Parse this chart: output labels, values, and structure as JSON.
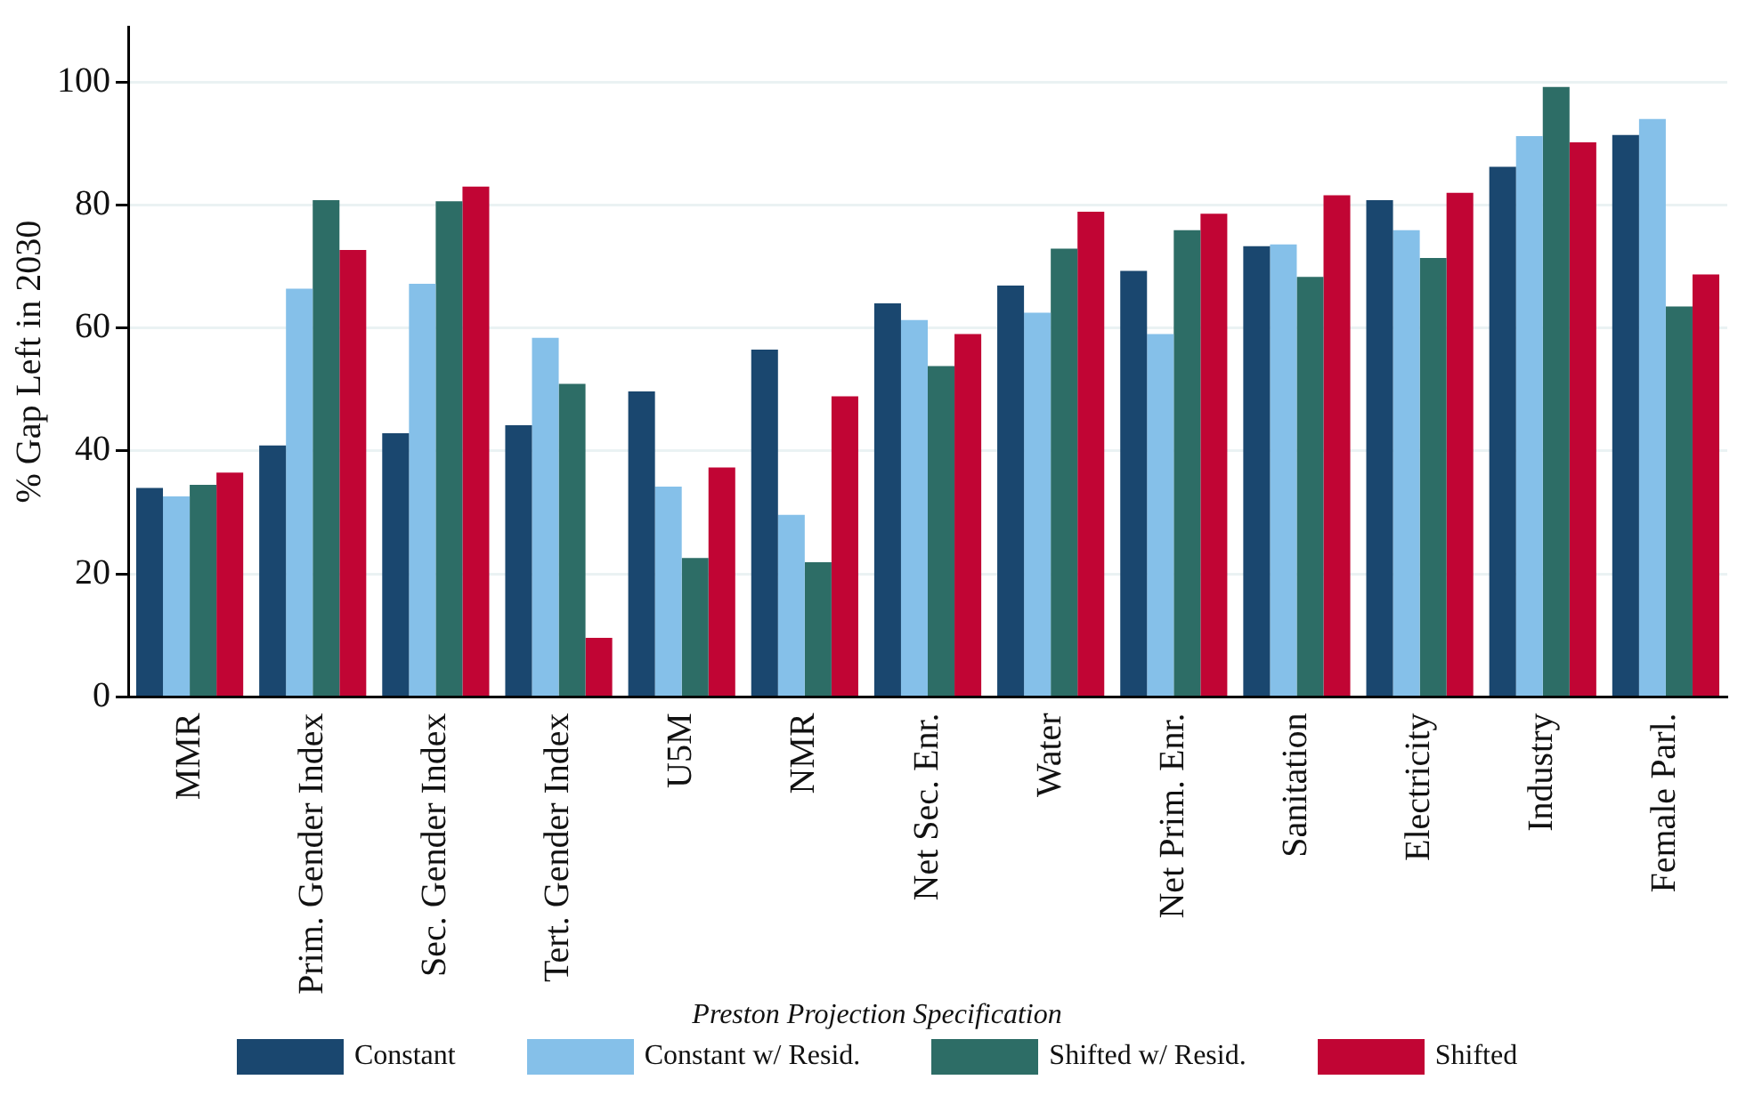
{
  "chart_data": {
    "type": "bar",
    "ylabel": "% Gap Left in 2030",
    "legend_title": "Preston Projection Specification",
    "categories": [
      "MMR",
      "Prim. Gender Index",
      "Sec. Gender Index",
      "Tert. Gender Index",
      "U5M",
      "NMR",
      "Net Sec. Enr.",
      "Water",
      "Net Prim. Enr.",
      "Sanitation",
      "Electricity",
      "Industry",
      "Female Parl."
    ],
    "series": [
      {
        "name": "Constant",
        "color": "#1a476f",
        "values": [
          34.0,
          40.9,
          42.9,
          44.2,
          49.7,
          56.5,
          64.0,
          66.9,
          69.3,
          73.3,
          80.8,
          86.2,
          91.4
        ]
      },
      {
        "name": "Constant w/ Resid.",
        "color": "#85c0e9",
        "values": [
          32.6,
          66.4,
          67.2,
          58.4,
          34.2,
          29.6,
          61.3,
          62.5,
          59.0,
          73.6,
          75.9,
          91.2,
          94.0
        ]
      },
      {
        "name": "Shifted w/ Resid.",
        "color": "#2d6d66",
        "values": [
          34.5,
          80.8,
          80.6,
          50.9,
          22.6,
          21.9,
          53.8,
          72.9,
          75.9,
          68.3,
          71.4,
          99.2,
          63.5
        ]
      },
      {
        "name": "Shifted",
        "color": "#c10534",
        "values": [
          36.5,
          72.7,
          83.0,
          9.6,
          37.3,
          48.9,
          59.0,
          78.9,
          78.6,
          81.6,
          82.0,
          90.2,
          68.7
        ]
      }
    ],
    "ylim": [
      0,
      109
    ],
    "yticks": [
      0,
      20,
      40,
      60,
      80,
      100
    ],
    "grid": "y",
    "legend": "bottom"
  }
}
